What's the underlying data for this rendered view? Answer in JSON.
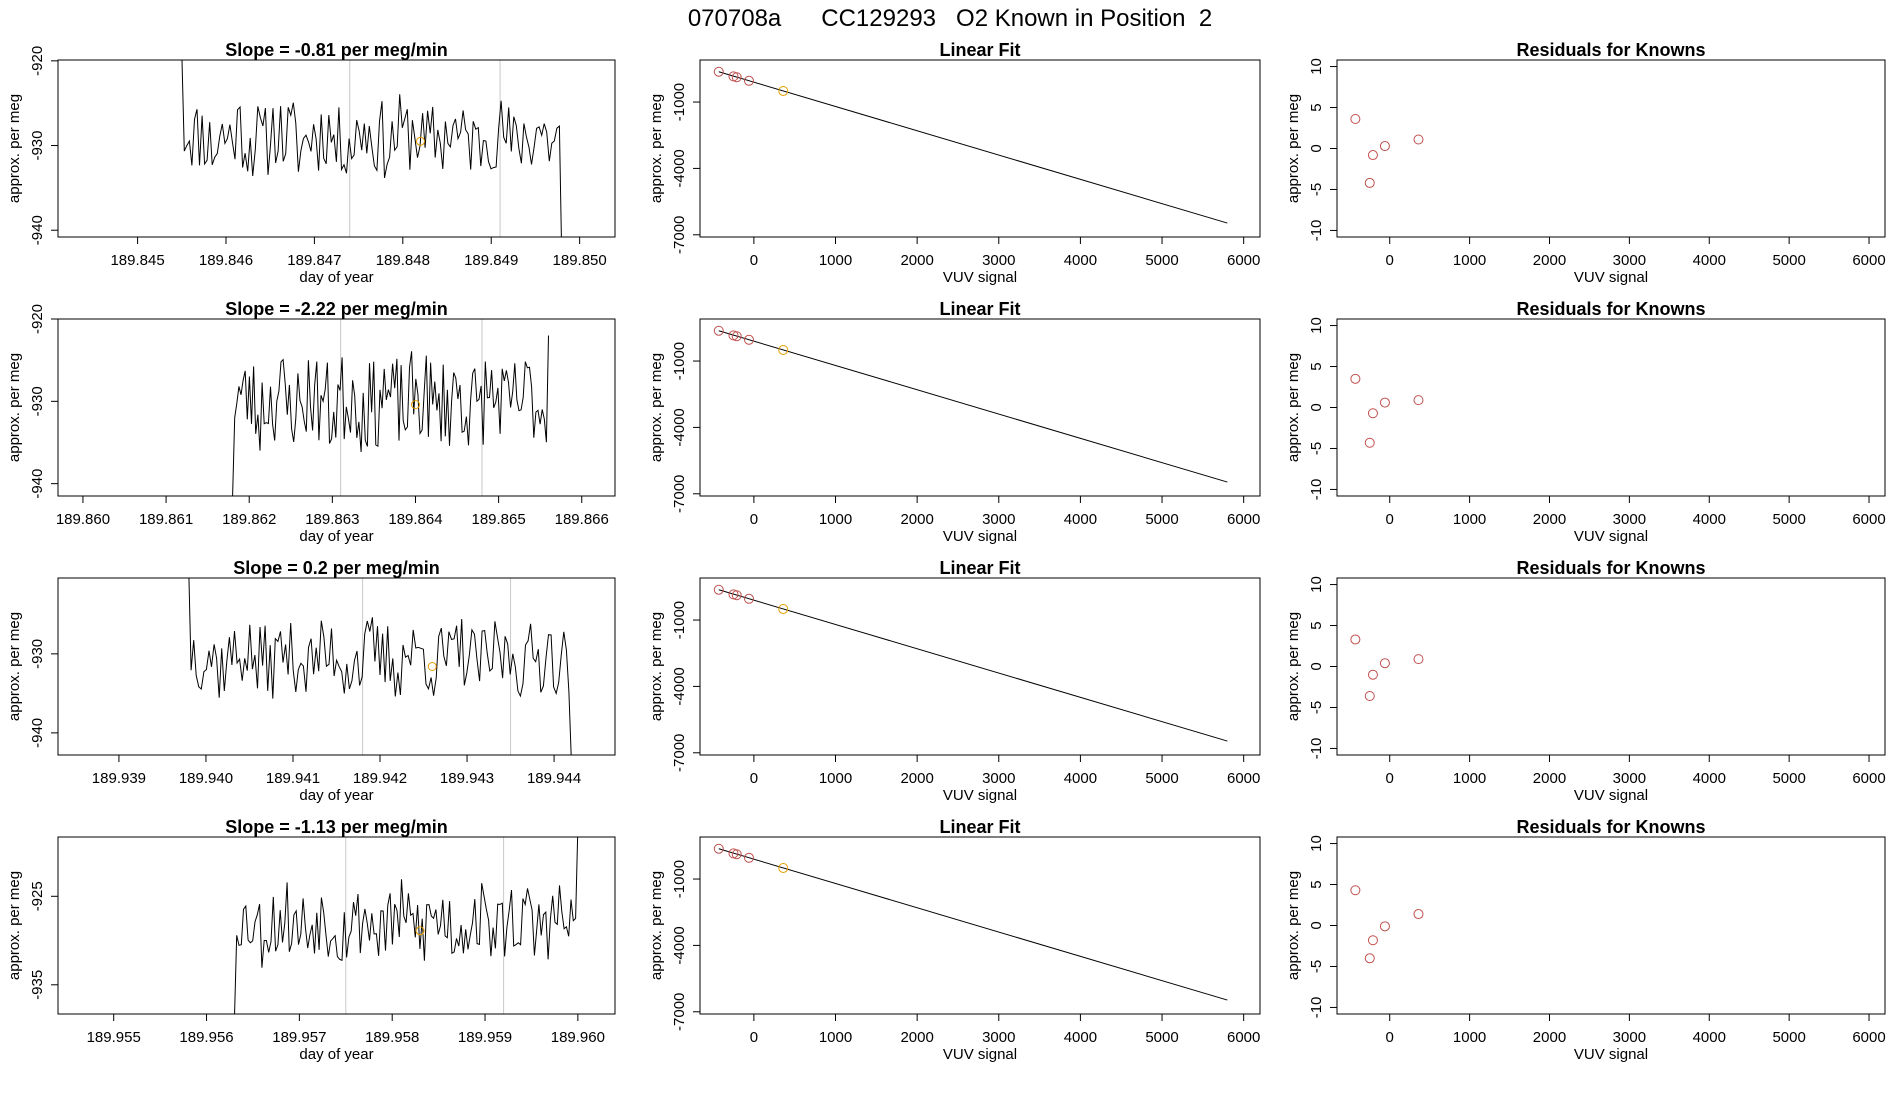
{
  "page_title": "070708a      CC129293   O2 Known in Position  2",
  "colors": {
    "trace": "#000000",
    "grid_vline": "#c8c8c8",
    "standard_point": "#c0504d",
    "highlight_point": "#e69f00",
    "axis": "#000000"
  },
  "chart_data": [
    {
      "type": "line",
      "title": "Slope =  -0.81  per meg/min",
      "xlabel": "day of year",
      "ylabel": "approx. per meg",
      "xlim": [
        189.8441,
        189.8504
      ],
      "ylim": [
        -940.8,
        -919.9
      ],
      "xticks": [
        189.845,
        189.846,
        189.847,
        189.848,
        189.849,
        189.85
      ],
      "xtick_labels": [
        "189.845",
        "189.846",
        "189.847",
        "189.848",
        "189.849",
        "189.850"
      ],
      "yticks": [
        -940,
        -930,
        -920
      ],
      "ytick_labels": [
        "-940",
        "-930",
        "-920"
      ],
      "x_start": 189.8455,
      "x_end": 189.8498,
      "seed": 11,
      "baseline": -929,
      "amplitude": 4.5,
      "start_value": -919,
      "end_value": -945,
      "vlines": [
        189.8474,
        189.8491
      ],
      "marker": [
        189.8482,
        -929.5
      ]
    },
    {
      "type": "scatter",
      "title": "Linear Fit",
      "xlabel": "VUV signal",
      "ylabel": "approx. per meg",
      "xlim": [
        -660,
        6200
      ],
      "ylim": [
        -7100,
        900
      ],
      "xticks": [
        0,
        1000,
        2000,
        3000,
        4000,
        5000,
        6000
      ],
      "xtick_labels": [
        "0",
        "1000",
        "2000",
        "3000",
        "4000",
        "5000",
        "6000"
      ],
      "yticks": [
        -7000,
        -4000,
        -1000
      ],
      "ytick_labels": [
        "-7000",
        "-4000",
        "-1000"
      ],
      "line": [
        [
          -430,
          370
        ],
        [
          5800,
          -6470
        ]
      ],
      "points": [
        [
          -430,
          370
        ],
        [
          -250,
          160
        ],
        [
          -210,
          120
        ],
        [
          -60,
          -40
        ],
        [
          360,
          -500
        ]
      ],
      "highlight_index": 4
    },
    {
      "type": "scatter",
      "title": "Residuals for Knowns",
      "xlabel": "VUV signal",
      "ylabel": "approx. per meg",
      "xlim": [
        -660,
        6200
      ],
      "ylim": [
        -10.8,
        10.8
      ],
      "xticks": [
        0,
        1000,
        2000,
        3000,
        4000,
        5000,
        6000
      ],
      "xtick_labels": [
        "0",
        "1000",
        "2000",
        "3000",
        "4000",
        "5000",
        "6000"
      ],
      "yticks": [
        -10,
        -5,
        0,
        5,
        10
      ],
      "ytick_labels": [
        "-10",
        "-5",
        "0",
        "5",
        "10"
      ],
      "points": [
        [
          -430,
          3.6
        ],
        [
          -250,
          -4.2
        ],
        [
          -210,
          -0.8
        ],
        [
          -60,
          0.3
        ],
        [
          360,
          1.1
        ]
      ]
    },
    {
      "type": "line",
      "title": "Slope =  -2.22  per meg/min",
      "xlabel": "day of year",
      "ylabel": "approx. per meg",
      "xlim": [
        189.8597,
        189.8664
      ],
      "ylim": [
        -941.5,
        -920.0
      ],
      "xticks": [
        189.86,
        189.861,
        189.862,
        189.863,
        189.864,
        189.865,
        189.866
      ],
      "xtick_labels": [
        "189.860",
        "189.861",
        "189.862",
        "189.863",
        "189.864",
        "189.865",
        "189.866"
      ],
      "yticks": [
        -940,
        -930,
        -920
      ],
      "ytick_labels": [
        "-940",
        "-930",
        "-920"
      ],
      "x_start": 189.8618,
      "x_end": 189.8656,
      "seed": 23,
      "baseline": -930,
      "amplitude": 5.5,
      "start_value": -941.5,
      "end_value": -922,
      "flat_from": 189.8597,
      "flat_value": -941.5,
      "vlines": [
        189.8631,
        189.8648
      ],
      "marker": [
        189.864,
        -930.4
      ]
    },
    {
      "type": "scatter",
      "title": "Linear Fit",
      "xlabel": "VUV signal",
      "ylabel": "approx. per meg",
      "xlim": [
        -660,
        6200
      ],
      "ylim": [
        -7100,
        900
      ],
      "xticks": [
        0,
        1000,
        2000,
        3000,
        4000,
        5000,
        6000
      ],
      "xtick_labels": [
        "0",
        "1000",
        "2000",
        "3000",
        "4000",
        "5000",
        "6000"
      ],
      "yticks": [
        -7000,
        -4000,
        -1000
      ],
      "ytick_labels": [
        "-7000",
        "-4000",
        "-1000"
      ],
      "line": [
        [
          -430,
          370
        ],
        [
          5800,
          -6470
        ]
      ],
      "points": [
        [
          -430,
          370
        ],
        [
          -250,
          160
        ],
        [
          -210,
          120
        ],
        [
          -60,
          -40
        ],
        [
          360,
          -500
        ]
      ],
      "highlight_index": 4
    },
    {
      "type": "scatter",
      "title": "Residuals for Knowns",
      "xlabel": "VUV signal",
      "ylabel": "approx. per meg",
      "xlim": [
        -660,
        6200
      ],
      "ylim": [
        -10.8,
        10.8
      ],
      "xticks": [
        0,
        1000,
        2000,
        3000,
        4000,
        5000,
        6000
      ],
      "xtick_labels": [
        "0",
        "1000",
        "2000",
        "3000",
        "4000",
        "5000",
        "6000"
      ],
      "yticks": [
        -10,
        -5,
        0,
        5,
        10
      ],
      "ytick_labels": [
        "-10",
        "-5",
        "0",
        "5",
        "10"
      ],
      "points": [
        [
          -430,
          3.5
        ],
        [
          -250,
          -4.3
        ],
        [
          -210,
          -0.7
        ],
        [
          -60,
          0.6
        ],
        [
          360,
          0.9
        ]
      ]
    },
    {
      "type": "line",
      "title": "Slope =  0.2  per meg/min",
      "xlabel": "day of year",
      "ylabel": "approx. per meg",
      "xlim": [
        189.9383,
        189.9447
      ],
      "ylim": [
        -942.8,
        -920.4
      ],
      "xticks": [
        189.939,
        189.94,
        189.941,
        189.942,
        189.943,
        189.944
      ],
      "xtick_labels": [
        "189.939",
        "189.940",
        "189.941",
        "189.942",
        "189.943",
        "189.944"
      ],
      "yticks": [
        -940,
        -930
      ],
      "ytick_labels": [
        "-940",
        "-930"
      ],
      "x_start": 189.9398,
      "x_end": 189.9442,
      "seed": 37,
      "baseline": -930.5,
      "amplitude": 4.5,
      "start_value": -918,
      "end_value": -944,
      "vlines": [
        189.9418,
        189.9435
      ],
      "marker": [
        189.9426,
        -931.6
      ]
    },
    {
      "type": "scatter",
      "title": "Linear Fit",
      "xlabel": "VUV signal",
      "ylabel": "approx. per meg",
      "xlim": [
        -660,
        6200
      ],
      "ylim": [
        -7100,
        900
      ],
      "xticks": [
        0,
        1000,
        2000,
        3000,
        4000,
        5000,
        6000
      ],
      "xtick_labels": [
        "0",
        "1000",
        "2000",
        "3000",
        "4000",
        "5000",
        "6000"
      ],
      "yticks": [
        -7000,
        -4000,
        -1000
      ],
      "ytick_labels": [
        "-7000",
        "-4000",
        "-1000"
      ],
      "line": [
        [
          -430,
          370
        ],
        [
          5800,
          -6470
        ]
      ],
      "points": [
        [
          -430,
          370
        ],
        [
          -250,
          160
        ],
        [
          -210,
          120
        ],
        [
          -60,
          -40
        ],
        [
          360,
          -500
        ]
      ],
      "highlight_index": 4
    },
    {
      "type": "scatter",
      "title": "Residuals for Knowns",
      "xlabel": "VUV signal",
      "ylabel": "approx. per meg",
      "xlim": [
        -660,
        6200
      ],
      "ylim": [
        -10.8,
        10.8
      ],
      "xticks": [
        0,
        1000,
        2000,
        3000,
        4000,
        5000,
        6000
      ],
      "xtick_labels": [
        "0",
        "1000",
        "2000",
        "3000",
        "4000",
        "5000",
        "6000"
      ],
      "yticks": [
        -10,
        -5,
        0,
        5,
        10
      ],
      "ytick_labels": [
        "-10",
        "-5",
        "0",
        "5",
        "10"
      ],
      "points": [
        [
          -430,
          3.3
        ],
        [
          -250,
          -3.6
        ],
        [
          -210,
          -1.0
        ],
        [
          -60,
          0.4
        ],
        [
          360,
          0.9
        ]
      ]
    },
    {
      "type": "line",
      "title": "Slope =  -1.13  per meg/min",
      "xlabel": "day of year",
      "ylabel": "approx. per meg",
      "xlim": [
        189.9544,
        189.9604
      ],
      "ylim": [
        -938.3,
        -918.3
      ],
      "xticks": [
        189.955,
        189.956,
        189.957,
        189.958,
        189.959,
        189.96
      ],
      "xtick_labels": [
        "189.955",
        "189.956",
        "189.957",
        "189.958",
        "189.959",
        "189.960"
      ],
      "yticks": [
        -935,
        -925
      ],
      "ytick_labels": [
        "-935",
        "-925"
      ],
      "x_start": 189.9563,
      "x_end": 189.96,
      "seed": 53,
      "baseline": -928,
      "amplitude": 4.2,
      "start_value": -939,
      "end_value": -917,
      "flat_from": 189.9544,
      "flat_value": -938.3,
      "vlines": [
        189.9575,
        189.9592
      ],
      "marker": [
        189.9583,
        -928.9
      ]
    },
    {
      "type": "scatter",
      "title": "Linear Fit",
      "xlabel": "VUV signal",
      "ylabel": "approx. per meg",
      "xlim": [
        -660,
        6200
      ],
      "ylim": [
        -7100,
        900
      ],
      "xticks": [
        0,
        1000,
        2000,
        3000,
        4000,
        5000,
        6000
      ],
      "xtick_labels": [
        "0",
        "1000",
        "2000",
        "3000",
        "4000",
        "5000",
        "6000"
      ],
      "yticks": [
        -7000,
        -4000,
        -1000
      ],
      "ytick_labels": [
        "-7000",
        "-4000",
        "-1000"
      ],
      "line": [
        [
          -430,
          370
        ],
        [
          5800,
          -6470
        ]
      ],
      "points": [
        [
          -430,
          370
        ],
        [
          -250,
          160
        ],
        [
          -210,
          120
        ],
        [
          -60,
          -40
        ],
        [
          360,
          -500
        ]
      ],
      "highlight_index": 4
    },
    {
      "type": "scatter",
      "title": "Residuals for Knowns",
      "xlabel": "VUV signal",
      "ylabel": "approx. per meg",
      "xlim": [
        -660,
        6200
      ],
      "ylim": [
        -10.8,
        10.8
      ],
      "xticks": [
        0,
        1000,
        2000,
        3000,
        4000,
        5000,
        6000
      ],
      "xtick_labels": [
        "0",
        "1000",
        "2000",
        "3000",
        "4000",
        "5000",
        "6000"
      ],
      "yticks": [
        -10,
        -5,
        0,
        5,
        10
      ],
      "ytick_labels": [
        "-10",
        "-5",
        "0",
        "5",
        "10"
      ],
      "points": [
        [
          -430,
          4.3
        ],
        [
          -250,
          -4.0
        ],
        [
          -210,
          -1.8
        ],
        [
          -60,
          -0.1
        ],
        [
          360,
          1.4
        ]
      ]
    }
  ]
}
